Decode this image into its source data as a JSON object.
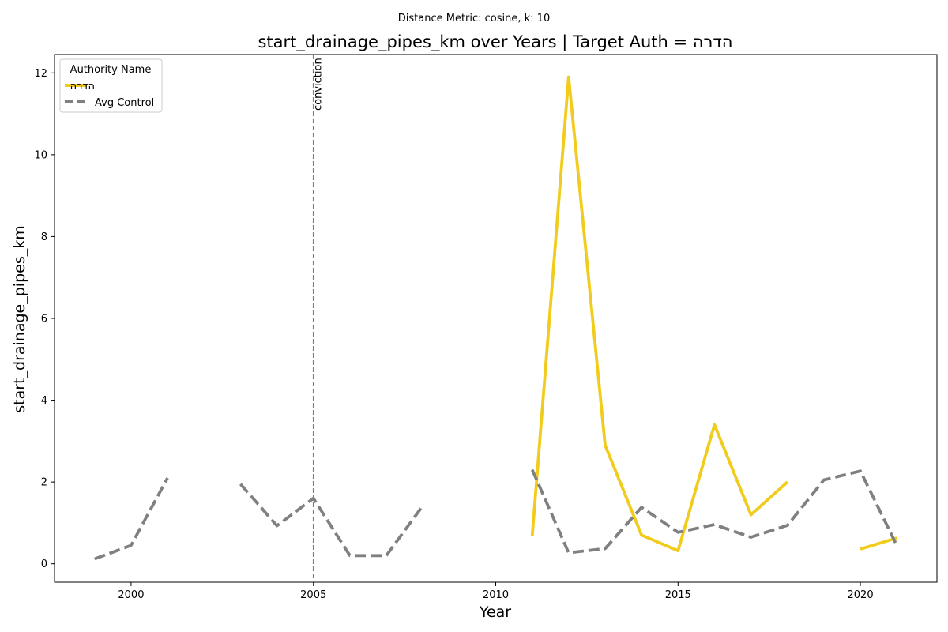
{
  "chart_data": {
    "type": "line",
    "suptitle": "Distance Metric: cosine, k: 10",
    "title": "start_drainage_pipes_km over Years | Target Auth = הדרה",
    "xlabel": "Year",
    "ylabel": "start_drainage_pipes_km",
    "xlim": [
      1997.9,
      2022.1
    ],
    "ylim": [
      -0.45,
      12.45
    ],
    "xticks": [
      2000,
      2005,
      2010,
      2015,
      2020
    ],
    "yticks": [
      0,
      2,
      4,
      6,
      8,
      10,
      12
    ],
    "grid": false,
    "legend": {
      "title": "Authority Name",
      "placement": "top-left"
    },
    "series": [
      {
        "name": "הדרה",
        "color": "#f2cc1d",
        "style": "solid",
        "x": [
          2011,
          2012,
          2013,
          2014,
          2015,
          2016,
          2017,
          2018,
          2019,
          2020,
          2021
        ],
        "y": [
          0.68,
          11.9,
          2.9,
          0.7,
          0.32,
          3.4,
          1.2,
          2.0,
          null,
          0.36,
          0.63
        ]
      },
      {
        "name": "Avg Control",
        "color": "#808080",
        "style": "dashed",
        "x": [
          1999,
          2000,
          2001,
          2002,
          2003,
          2004,
          2005,
          2006,
          2007,
          2008,
          2009,
          2010,
          2011,
          2012,
          2013,
          2014,
          2015,
          2016,
          2017,
          2018,
          2019,
          2020,
          2021
        ],
        "y": [
          0.12,
          0.45,
          2.1,
          null,
          1.95,
          0.93,
          1.6,
          0.2,
          0.2,
          1.42,
          null,
          null,
          2.3,
          0.27,
          0.37,
          1.38,
          0.77,
          0.96,
          0.65,
          0.94,
          2.05,
          2.27,
          0.45
        ]
      }
    ],
    "annotations": [
      {
        "type": "vline",
        "x": 2005,
        "label": "conviction",
        "color": "#808080"
      }
    ]
  }
}
